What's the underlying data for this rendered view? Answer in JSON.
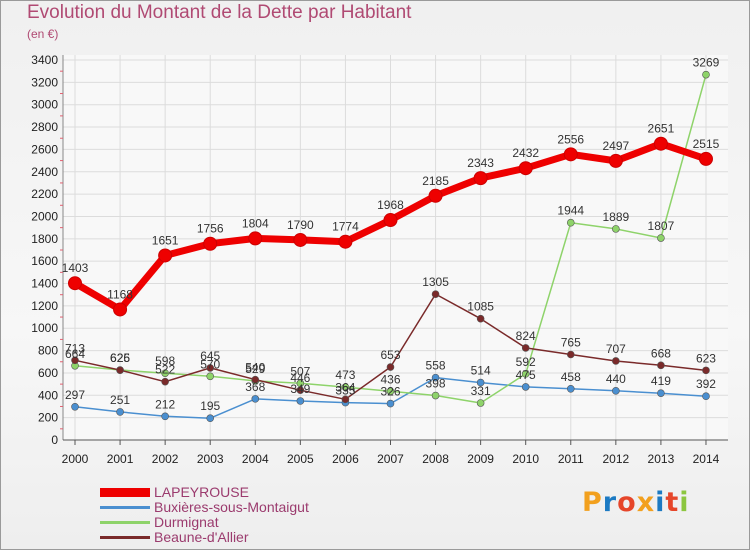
{
  "header": {
    "title": "Evolution du Montant de la Dette par Habitant",
    "subtitle": "(en €)"
  },
  "logo": {
    "letters": [
      "P",
      "r",
      "o",
      "x",
      "i",
      "t",
      "i"
    ],
    "colors": [
      "#f2a01e",
      "#1c7ac3",
      "#e6462a",
      "#f2a01e",
      "#1c7ac3",
      "#e6462a",
      "#8cc63f"
    ]
  },
  "chart_data": {
    "type": "line",
    "title": "Evolution du Montant de la Dette par Habitant",
    "subtitle": "(en €)",
    "xlabel": "",
    "ylabel": "",
    "x": [
      "2000",
      "2001",
      "2002",
      "2003",
      "2004",
      "2005",
      "2006",
      "2007",
      "2008",
      "2009",
      "2010",
      "2011",
      "2012",
      "2013",
      "2014"
    ],
    "ylim": [
      0,
      3400
    ],
    "yticks": [
      "0",
      "200",
      "400",
      "600",
      "800",
      "1000",
      "1200",
      "1400",
      "1600",
      "1800",
      "2000",
      "2200",
      "2400",
      "2600",
      "2800",
      "3000",
      "3200",
      "3400"
    ],
    "grid": true,
    "legend_position": "bottom-left",
    "series": [
      {
        "name": "LAPEYROUSE",
        "color": "#ee0000",
        "values": [
          1403,
          1168,
          1651,
          1756,
          1804,
          1790,
          1774,
          1968,
          2185,
          2343,
          2432,
          2556,
          2497,
          2651,
          2515
        ],
        "labels": [
          "1403",
          "1168",
          "1651",
          "1756",
          "1804",
          "1790",
          "1774",
          "1968",
          "2185",
          "2343",
          "2432",
          "2556",
          "2497",
          "2651",
          "2515"
        ]
      },
      {
        "name": "Buxières-sous-Montaigut",
        "color": "#4a8fd0",
        "values": [
          297,
          251,
          212,
          195,
          368,
          349,
          335,
          326,
          558,
          514,
          475,
          458,
          440,
          419,
          392
        ],
        "labels": [
          "297",
          "251",
          "212",
          "195",
          "368",
          "349",
          "335",
          "326",
          "558",
          "514",
          "475",
          "458",
          "440",
          "419",
          "392"
        ]
      },
      {
        "name": "Durmignat",
        "color": "#8ed36a",
        "values": [
          664,
          626,
          598,
          570,
          529,
          507,
          473,
          436,
          398,
          331,
          592,
          1944,
          1889,
          1807,
          3269
        ],
        "labels": [
          "664",
          "626",
          "598",
          "570",
          "529",
          "507",
          "473",
          "436",
          "398",
          "331",
          "592",
          "1944",
          "1889",
          "1807",
          "3269"
        ]
      },
      {
        "name": "Beaune-d'Allier",
        "color": "#7a2a2a",
        "values": [
          713,
          625,
          522,
          645,
          540,
          446,
          364,
          653,
          1305,
          1085,
          824,
          765,
          707,
          668,
          623
        ],
        "labels": [
          "713",
          "625",
          "522",
          "645",
          "540",
          "446",
          "364",
          "653",
          "1305",
          "1085",
          "824",
          "765",
          "707",
          "668",
          "623"
        ]
      }
    ]
  }
}
